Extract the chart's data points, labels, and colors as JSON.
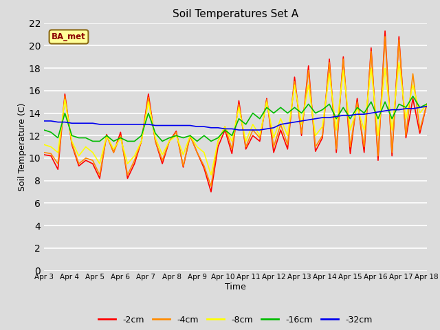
{
  "title": "Soil Temperatures Set A",
  "xlabel": "Time",
  "ylabel": "Soil Temperature (C)",
  "annotation": "BA_met",
  "ylim": [
    0,
    22
  ],
  "yticks": [
    0,
    2,
    4,
    6,
    8,
    10,
    12,
    14,
    16,
    18,
    20,
    22
  ],
  "xtick_labels": [
    "Apr 3",
    "Apr 4",
    "Apr 5",
    "Apr 6",
    "Apr 7",
    "Apr 8",
    "Apr 9",
    "Apr 10",
    "Apr 11",
    "Apr 12",
    "Apr 13",
    "Apr 14",
    "Apr 15",
    "Apr 16",
    "Apr 17",
    "Apr 18"
  ],
  "colors": {
    "-2cm": "#ff0000",
    "-4cm": "#ff8c00",
    "-8cm": "#ffff00",
    "-16cm": "#00bb00",
    "-32cm": "#0000ee"
  },
  "legend_labels": [
    "-2cm",
    "-4cm",
    "-8cm",
    "-16cm",
    "-32cm"
  ],
  "background_color": "#dcdcdc",
  "series": {
    "-2cm": [
      10.3,
      10.2,
      9.0,
      15.7,
      11.2,
      9.3,
      9.8,
      9.5,
      8.2,
      12.1,
      10.5,
      12.3,
      8.2,
      9.5,
      11.5,
      15.7,
      11.5,
      9.5,
      11.5,
      12.4,
      9.2,
      12.0,
      10.5,
      9.1,
      7.0,
      11.0,
      12.5,
      10.4,
      15.1,
      10.8,
      12.0,
      11.5,
      15.3,
      10.5,
      12.5,
      10.8,
      17.2,
      12.0,
      18.2,
      10.6,
      11.8,
      18.8,
      10.5,
      19.0,
      10.4,
      15.3,
      10.5,
      19.8,
      9.8,
      21.3,
      10.2,
      20.8,
      11.8,
      15.3,
      12.2,
      14.8
    ],
    "-4cm": [
      10.5,
      10.4,
      9.5,
      15.5,
      11.3,
      9.5,
      10.0,
      9.8,
      8.5,
      12.0,
      10.5,
      12.0,
      8.5,
      9.8,
      11.5,
      15.4,
      11.5,
      9.8,
      11.5,
      12.3,
      9.3,
      12.0,
      10.5,
      9.3,
      7.5,
      11.5,
      12.8,
      10.8,
      14.8,
      11.0,
      12.5,
      11.8,
      15.2,
      11.0,
      13.0,
      11.2,
      16.8,
      12.2,
      17.8,
      11.0,
      12.0,
      18.5,
      10.8,
      18.8,
      11.0,
      15.0,
      11.0,
      19.5,
      10.2,
      20.8,
      10.5,
      20.5,
      12.0,
      17.5,
      12.5,
      14.8
    ],
    "-8cm": [
      11.2,
      11.0,
      10.5,
      15.2,
      11.5,
      10.2,
      11.0,
      10.5,
      9.5,
      12.0,
      10.8,
      11.8,
      9.5,
      10.2,
      11.5,
      15.0,
      11.8,
      10.3,
      11.5,
      12.0,
      10.3,
      12.0,
      11.0,
      10.5,
      8.5,
      11.5,
      12.8,
      11.5,
      14.5,
      11.5,
      13.0,
      12.0,
      15.0,
      11.8,
      13.5,
      12.0,
      16.5,
      13.0,
      16.5,
      12.0,
      12.8,
      17.5,
      12.5,
      17.8,
      12.5,
      14.5,
      12.5,
      18.0,
      12.0,
      18.0,
      12.5,
      18.5,
      13.5,
      16.5,
      14.0,
      14.8
    ],
    "-16cm": [
      12.5,
      12.3,
      11.8,
      14.0,
      12.0,
      11.8,
      11.8,
      11.5,
      11.5,
      12.0,
      11.5,
      11.8,
      11.5,
      11.5,
      12.0,
      14.0,
      12.2,
      11.5,
      11.8,
      12.0,
      11.8,
      12.0,
      11.5,
      12.0,
      11.5,
      11.8,
      12.5,
      12.0,
      13.5,
      13.0,
      14.0,
      13.5,
      14.5,
      14.0,
      14.5,
      14.0,
      14.5,
      14.0,
      14.8,
      14.0,
      14.3,
      14.8,
      13.5,
      14.5,
      13.5,
      14.5,
      14.0,
      15.0,
      13.5,
      15.0,
      13.5,
      14.8,
      14.5,
      15.5,
      14.5,
      14.8
    ],
    "-32cm": [
      13.3,
      13.3,
      13.2,
      13.2,
      13.1,
      13.1,
      13.1,
      13.1,
      13.0,
      13.0,
      13.0,
      13.0,
      13.0,
      13.0,
      13.0,
      13.0,
      12.9,
      12.9,
      12.9,
      12.9,
      12.9,
      12.9,
      12.8,
      12.8,
      12.7,
      12.7,
      12.6,
      12.6,
      12.5,
      12.5,
      12.5,
      12.5,
      12.6,
      12.7,
      13.0,
      13.1,
      13.2,
      13.3,
      13.4,
      13.5,
      13.6,
      13.6,
      13.7,
      13.8,
      13.8,
      13.9,
      13.9,
      14.0,
      14.1,
      14.2,
      14.3,
      14.3,
      14.4,
      14.4,
      14.5,
      14.6
    ]
  }
}
